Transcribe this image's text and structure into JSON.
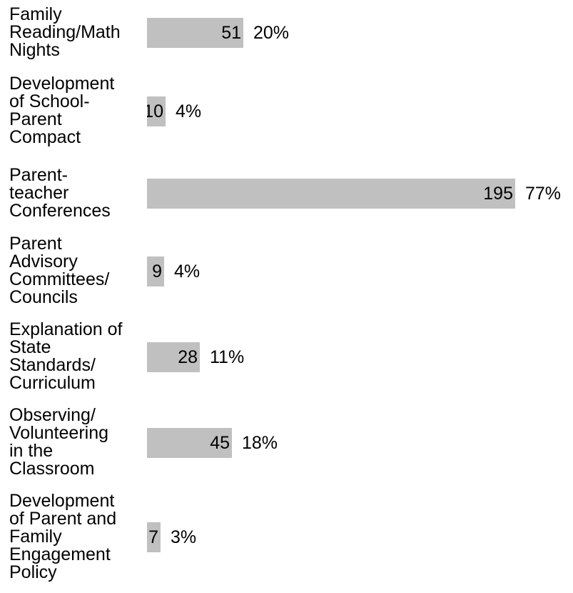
{
  "chart_data": {
    "type": "bar",
    "orientation": "horizontal",
    "categories": [
      "Family\nReading/Math\nNights",
      "Development\nof School-\nParent\nCompact",
      "Parent-\nteacher\nConferences",
      "Parent\nAdvisory\nCommittees/\nCouncils",
      "Explanation of\nState\nStandards/\nCurriculum",
      "Observing/\nVolunteering\nin the\nClassroom",
      "Development\nof Parent and\nFamily\nEngagement\nPolicy"
    ],
    "values": [
      51,
      10,
      195,
      9,
      28,
      45,
      7
    ],
    "value_labels": [
      "51",
      "10",
      "195",
      "9",
      "28",
      "45",
      "7"
    ],
    "percent_labels": [
      "20%",
      "4%",
      "77%",
      "4%",
      "11%",
      "18%",
      "3%"
    ],
    "xlim": [
      0,
      195
    ],
    "grid": false,
    "bar_color": "#c0c0c0"
  }
}
